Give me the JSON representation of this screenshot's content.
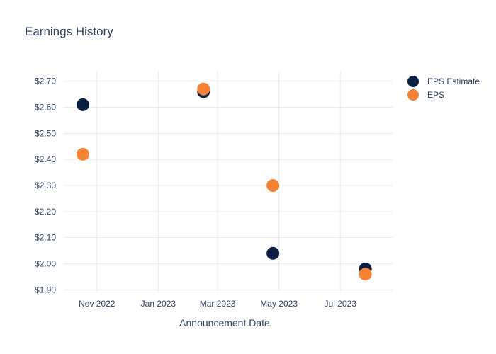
{
  "chart_data": {
    "type": "scatter",
    "title": "Earnings History",
    "xlabel": "Announcement Date",
    "ylabel": "",
    "x_ticks": [
      "Nov 2022",
      "Jan 2023",
      "Mar 2023",
      "May 2023",
      "Jul 2023"
    ],
    "x_tick_dates": [
      "2022-11-01",
      "2023-01-01",
      "2023-03-01",
      "2023-05-01",
      "2023-07-01"
    ],
    "xlim": [
      "2022-09-29",
      "2023-08-22"
    ],
    "y_ticks": [
      "$1.90",
      "$2.00",
      "$2.10",
      "$2.20",
      "$2.30",
      "$2.40",
      "$2.50",
      "$2.60",
      "$2.70"
    ],
    "y_tick_values": [
      1.9,
      2.0,
      2.1,
      2.2,
      2.3,
      2.4,
      2.5,
      2.6,
      2.7
    ],
    "ylim": [
      1.89,
      2.74
    ],
    "grid": true,
    "legend_position": "top-right",
    "x": [
      "2022-10-18",
      "2023-02-15",
      "2023-04-25",
      "2023-07-26"
    ],
    "series": [
      {
        "name": "EPS Estimate",
        "color": "#0b1f42",
        "values": [
          2.61,
          2.66,
          2.04,
          1.98
        ]
      },
      {
        "name": "EPS",
        "color": "#f58235",
        "values": [
          2.42,
          2.67,
          2.3,
          1.96
        ]
      }
    ]
  }
}
